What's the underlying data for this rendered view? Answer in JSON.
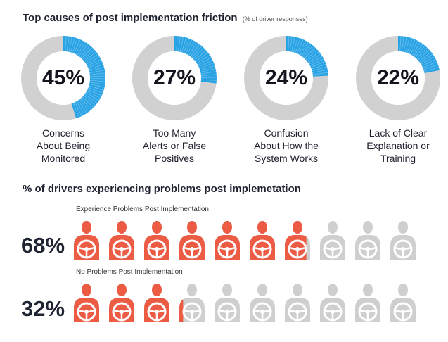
{
  "section1": {
    "title": "Top causes of post implementation friction",
    "subtitle": "(% of driver responses)"
  },
  "section2": {
    "title": "% of drivers experiencing problems post implemetation"
  },
  "colors": {
    "donut_track": "#d1d1d1",
    "donut_fill": "#2aa3e5",
    "icon_active": "#ec5b43",
    "icon_inactive": "#cfcfcf"
  },
  "chart_data": [
    {
      "type": "pie",
      "title": "Top causes of post implementation friction",
      "subtitle": "(% of driver responses)",
      "items": [
        {
          "label": "Concerns\nAbout Being\nMonitored",
          "value": 45,
          "display": "45%"
        },
        {
          "label": "Too Many\nAlerts or False\nPositives",
          "value": 27,
          "display": "27%"
        },
        {
          "label": "Confusion\nAbout How the\nSystem Works",
          "value": 24,
          "display": "24%"
        },
        {
          "label": "Lack of Clear\nExplanation or\nTraining",
          "value": 22,
          "display": "22%"
        }
      ]
    },
    {
      "type": "bar",
      "title": "% of drivers experiencing problems post implemetation",
      "rows": [
        {
          "label": "Experience Problems Post Implementation",
          "value": 68,
          "display": "68%",
          "icons_total": 10
        },
        {
          "label": "No Problems Post Implementation",
          "value": 32,
          "display": "32%",
          "icons_total": 10
        }
      ]
    }
  ]
}
